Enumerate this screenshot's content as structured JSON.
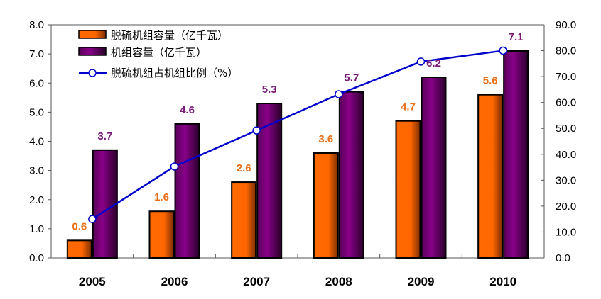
{
  "chart_data": {
    "type": "bar",
    "title": "",
    "categories": [
      "2005",
      "2006",
      "2007",
      "2008",
      "2009",
      "2010"
    ],
    "series": [
      {
        "name": "脱硫机组容量（亿千瓦）",
        "type": "bar",
        "axis": "left",
        "values": [
          0.6,
          1.6,
          2.6,
          3.6,
          4.7,
          5.6
        ],
        "labels": [
          "0.6",
          "1.6",
          "2.6",
          "3.6",
          "4.7",
          "5.6"
        ],
        "color": "#FF6600",
        "label_color": "#E8701A"
      },
      {
        "name": "机组容量（亿千瓦）",
        "type": "bar",
        "axis": "left",
        "values": [
          3.7,
          4.6,
          5.3,
          5.7,
          6.2,
          7.1
        ],
        "labels": [
          "3.7",
          "4.6",
          "5.3",
          "5.7",
          "6.2",
          "7.1"
        ],
        "color": "#800080",
        "label_color": "#7A1A7A"
      },
      {
        "name": "脱硫机组占机组比例（%）",
        "type": "line",
        "axis": "right",
        "values": [
          15,
          35.3,
          49.2,
          63.2,
          75.8,
          80
        ],
        "color": "#0000CC"
      }
    ],
    "y_left": {
      "range": [
        0,
        8
      ],
      "ticks": [
        "0.0",
        "1.0",
        "2.0",
        "3.0",
        "4.0",
        "5.0",
        "6.0",
        "7.0",
        "8.0"
      ]
    },
    "y_right": {
      "range": [
        0,
        90
      ],
      "ticks": [
        "0.0",
        "10.0",
        "20.0",
        "30.0",
        "40.0",
        "50.0",
        "60.0",
        "70.0",
        "80.0",
        "90.0"
      ]
    },
    "xlabel": "",
    "ylabel": "",
    "legend": "top-left",
    "grid": false
  }
}
